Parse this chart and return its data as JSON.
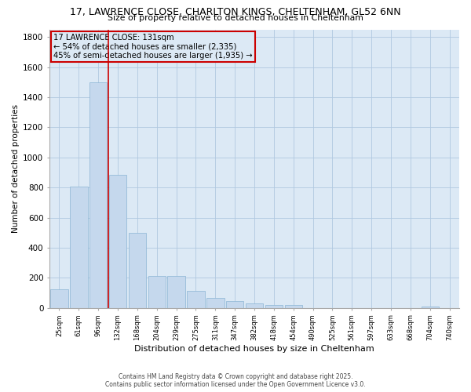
{
  "title_line1": "17, LAWRENCE CLOSE, CHARLTON KINGS, CHELTENHAM, GL52 6NN",
  "title_line2": "Size of property relative to detached houses in Cheltenham",
  "xlabel": "Distribution of detached houses by size in Cheltenham",
  "ylabel": "Number of detached properties",
  "categories": [
    "25sqm",
    "61sqm",
    "96sqm",
    "132sqm",
    "168sqm",
    "204sqm",
    "239sqm",
    "275sqm",
    "311sqm",
    "347sqm",
    "382sqm",
    "418sqm",
    "454sqm",
    "490sqm",
    "525sqm",
    "561sqm",
    "597sqm",
    "633sqm",
    "668sqm",
    "704sqm",
    "740sqm"
  ],
  "values": [
    125,
    805,
    1500,
    885,
    500,
    210,
    210,
    115,
    65,
    45,
    30,
    20,
    20,
    0,
    0,
    0,
    0,
    0,
    0,
    10,
    0
  ],
  "bar_color": "#c5d8ed",
  "bar_edgecolor": "#8ab4d4",
  "grid_color": "#b0c8e0",
  "ax_background_color": "#dce9f5",
  "fig_background_color": "#ffffff",
  "vline_x_index": 2.5,
  "vline_color": "#cc0000",
  "annotation_title": "17 LAWRENCE CLOSE: 131sqm",
  "annotation_line1": "← 54% of detached houses are smaller (2,335)",
  "annotation_line2": "45% of semi-detached houses are larger (1,935) →",
  "annotation_box_color": "#cc0000",
  "ylim": [
    0,
    1850
  ],
  "yticks": [
    0,
    200,
    400,
    600,
    800,
    1000,
    1200,
    1400,
    1600,
    1800
  ],
  "footnote1": "Contains HM Land Registry data © Crown copyright and database right 2025.",
  "footnote2": "Contains public sector information licensed under the Open Government Licence v3.0."
}
